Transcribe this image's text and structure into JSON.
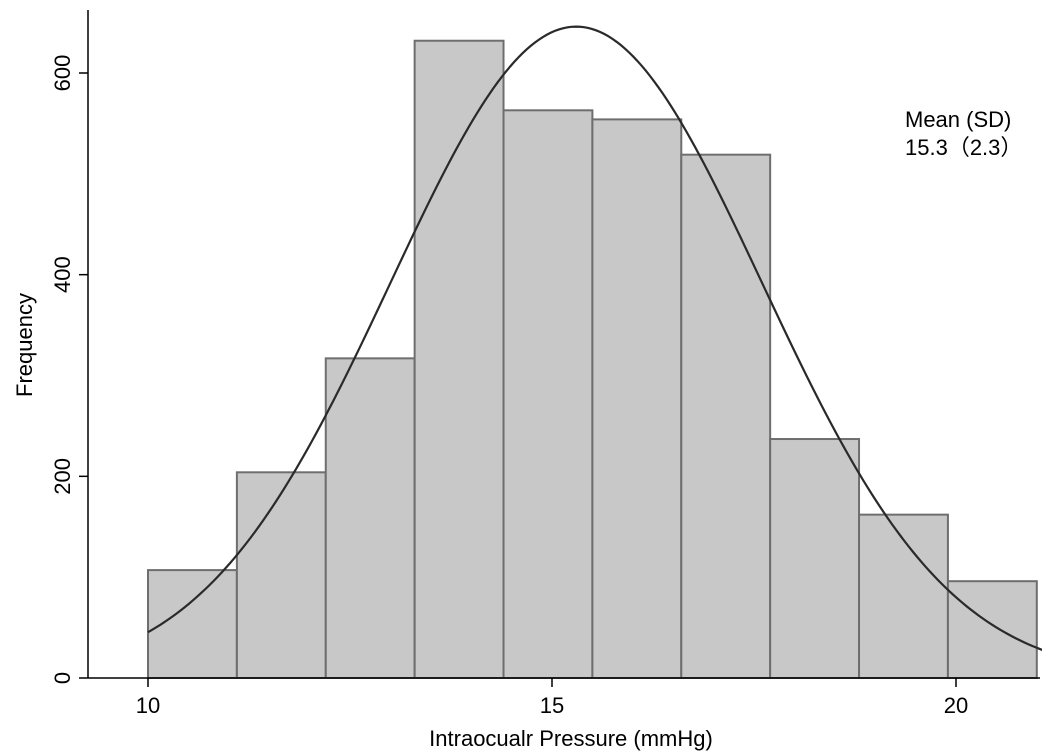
{
  "chart_data": {
    "type": "bar",
    "title": "",
    "xlabel": "Intraocualr Pressure (mmHg)",
    "ylabel": "Frequency",
    "xlim": [
      8.5,
      21.2
    ],
    "ylim": [
      0,
      650
    ],
    "x_ticks": [
      10,
      15,
      20
    ],
    "x_tick_labels": [
      "10",
      "15",
      "20"
    ],
    "y_ticks": [
      0,
      200,
      400,
      600
    ],
    "y_tick_labels": [
      "0",
      "200",
      "400",
      "600"
    ],
    "bins": [
      {
        "x0": 10.0,
        "x1": 11.1,
        "value": 107
      },
      {
        "x0": 11.1,
        "x1": 12.2,
        "value": 204
      },
      {
        "x0": 12.2,
        "x1": 13.3,
        "value": 317
      },
      {
        "x0": 13.3,
        "x1": 14.4,
        "value": 632
      },
      {
        "x0": 14.4,
        "x1": 15.5,
        "value": 563
      },
      {
        "x0": 15.5,
        "x1": 16.6,
        "value": 554
      },
      {
        "x0": 16.6,
        "x1": 17.7,
        "value": 519
      },
      {
        "x0": 17.7,
        "x1": 18.8,
        "value": 237
      },
      {
        "x0": 18.8,
        "x1": 19.9,
        "value": 162
      },
      {
        "x0": 19.9,
        "x1": 21.0,
        "value": 96
      }
    ],
    "normal_curve": {
      "mean": 15.3,
      "sd": 2.3,
      "peak": 646,
      "x_start": 10.0,
      "x_end": 21.2
    },
    "annotation": {
      "line1": "Mean (SD)",
      "line2": "15.3（2.3）"
    },
    "grid": false,
    "colors": {
      "bar_fill": "#c8c8c8",
      "bar_stroke": "#6e6e6e",
      "curve": "#2a2a2a",
      "axis": "#000000"
    }
  }
}
